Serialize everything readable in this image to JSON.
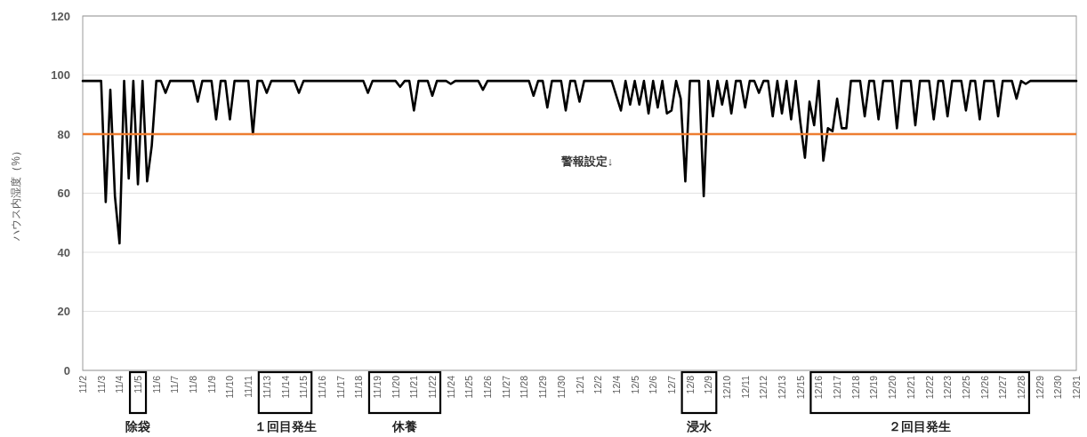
{
  "chart_data": {
    "type": "line",
    "ylabel": "ハウス内湿度（%）",
    "categories": [
      "11/2",
      null,
      null,
      null,
      "11/3",
      null,
      null,
      null,
      "11/4",
      null,
      null,
      null,
      "11/5",
      null,
      null,
      null,
      "11/6",
      null,
      null,
      null,
      "11/7",
      null,
      null,
      null,
      "11/8",
      null,
      null,
      null,
      "11/9",
      null,
      null,
      null,
      "11/10",
      null,
      null,
      null,
      "11/11",
      null,
      null,
      null,
      "11/13",
      null,
      null,
      null,
      "11/14",
      null,
      null,
      null,
      "11/15",
      null,
      null,
      null,
      "11/16",
      null,
      null,
      null,
      "11/17",
      null,
      null,
      null,
      "11/18",
      null,
      null,
      null,
      "11/19",
      null,
      null,
      null,
      "11/20",
      null,
      null,
      null,
      "11/21",
      null,
      null,
      null,
      "11/22",
      null,
      null,
      null,
      "11/24",
      null,
      null,
      null,
      "11/25",
      null,
      null,
      null,
      "11/26",
      null,
      null,
      null,
      "11/27",
      null,
      null,
      null,
      "11/28",
      null,
      null,
      null,
      "11/29",
      null,
      null,
      null,
      "11/30",
      null,
      null,
      null,
      "12/1",
      null,
      null,
      null,
      "12/2",
      null,
      null,
      null,
      "12/4",
      null,
      null,
      null,
      "12/5",
      null,
      null,
      null,
      "12/6",
      null,
      null,
      null,
      "12/7",
      null,
      null,
      null,
      "12/8",
      null,
      null,
      null,
      "12/9",
      null,
      null,
      null,
      "12/10",
      null,
      null,
      null,
      "12/11",
      null,
      null,
      null,
      "12/12",
      null,
      null,
      null,
      "12/13",
      null,
      null,
      null,
      "12/15",
      null,
      null,
      null,
      "12/16",
      null,
      null,
      null,
      "12/17",
      null,
      null,
      null,
      "12/18",
      null,
      null,
      null,
      "12/19",
      null,
      null,
      null,
      "12/20",
      null,
      null,
      null,
      "12/21",
      null,
      null,
      null,
      "12/22",
      null,
      null,
      null,
      "12/23",
      null,
      null,
      null,
      "12/25",
      null,
      null,
      null,
      "12/26",
      null,
      null,
      null,
      "12/27",
      null,
      null,
      null,
      "12/28",
      null,
      null,
      null,
      "12/29",
      null,
      null,
      null,
      "12/30",
      null,
      null,
      null,
      "12/31"
    ],
    "series": [
      {
        "color": "#000000",
        "values": [
          98,
          98,
          98,
          98,
          98,
          57,
          95,
          59,
          43,
          98,
          65,
          98,
          63,
          98,
          64,
          76,
          98,
          98,
          94,
          98,
          98,
          98,
          98,
          98,
          98,
          91,
          98,
          98,
          98,
          85,
          98,
          98,
          85,
          98,
          98,
          98,
          98,
          80,
          98,
          98,
          94,
          98,
          98,
          98,
          98,
          98,
          98,
          94,
          98,
          98,
          98,
          98,
          98,
          98,
          98,
          98,
          98,
          98,
          98,
          98,
          98,
          98,
          94,
          98,
          98,
          98,
          98,
          98,
          98,
          96,
          98,
          98,
          88,
          98,
          98,
          98,
          93,
          98,
          98,
          98,
          97,
          98,
          98,
          98,
          98,
          98,
          98,
          95,
          98,
          98,
          98,
          98,
          98,
          98,
          98,
          98,
          98,
          98,
          93,
          98,
          98,
          89,
          98,
          98,
          98,
          88,
          98,
          98,
          91,
          98,
          98,
          98,
          98,
          98,
          98,
          98,
          93,
          88,
          98,
          90,
          98,
          90,
          98,
          87,
          98,
          89,
          98,
          87,
          88,
          98,
          92,
          64,
          98,
          98,
          98,
          59,
          98,
          86,
          98,
          90,
          98,
          87,
          98,
          98,
          89,
          98,
          98,
          94,
          98,
          98,
          86,
          98,
          87,
          98,
          85,
          98,
          84,
          72,
          91,
          83,
          98,
          71,
          82,
          81,
          92,
          82,
          82,
          98,
          98,
          98,
          86,
          98,
          98,
          85,
          98,
          98,
          98,
          82,
          98,
          98,
          98,
          83,
          98,
          98,
          98,
          85,
          98,
          98,
          86,
          98,
          98,
          98,
          88,
          98,
          98,
          85,
          98,
          98,
          98,
          86,
          98,
          98,
          98,
          92,
          98,
          97,
          98,
          98,
          98,
          98,
          98,
          98,
          98,
          98,
          98,
          98,
          98
        ]
      }
    ],
    "ylim": [
      0,
      120
    ],
    "yticks": [
      0,
      20,
      40,
      60,
      80,
      100,
      120
    ],
    "grid": "y",
    "marker": "none",
    "line_style": "solid",
    "ref_lines": [
      {
        "axis": "y",
        "value": 80,
        "label": "警報設定↓",
        "color": "#ed7d31"
      }
    ],
    "annotations": [
      "除袋",
      "１回目発生",
      "休養",
      "浸水",
      "２回目発生"
    ]
  }
}
